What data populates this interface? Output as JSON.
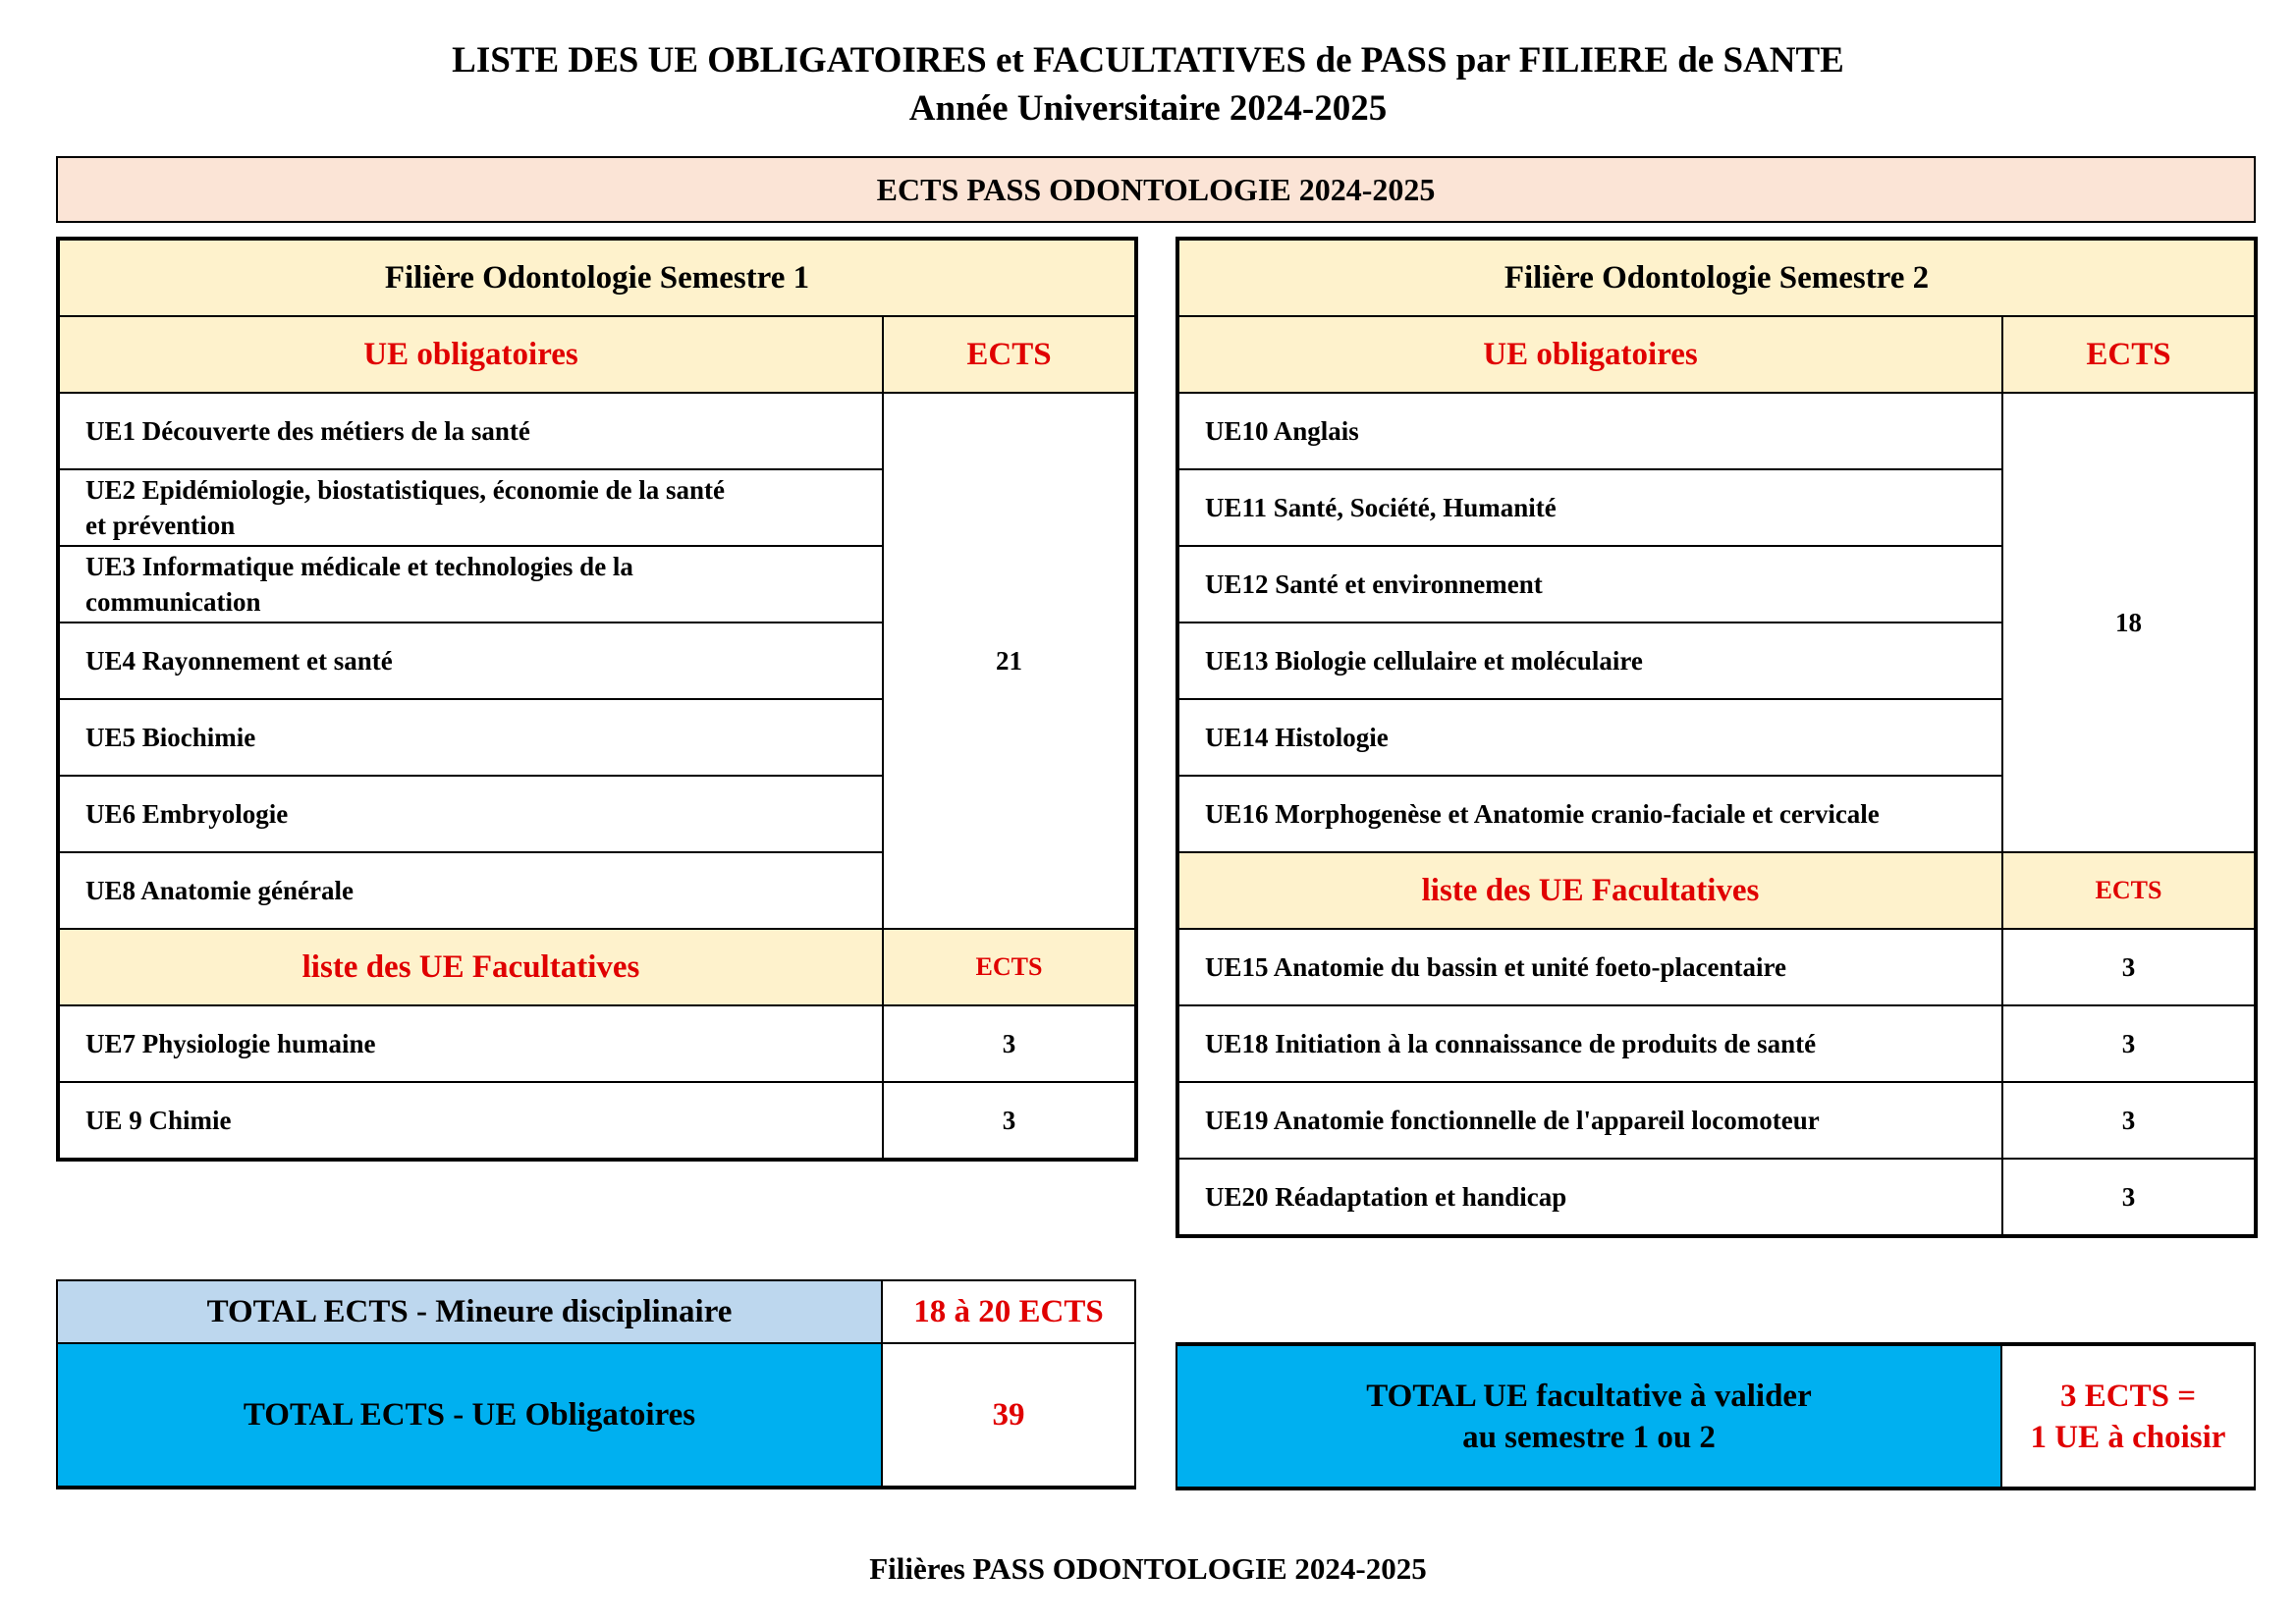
{
  "header": {
    "title_line1": "LISTE DES UE OBLIGATOIRES et FACULTATIVES de PASS par FILIERE de SANTE",
    "title_line2": "Année Universitaire 2024-2025",
    "banner": "ECTS PASS ODONTOLOGIE 2024-2025"
  },
  "semester1": {
    "title": "Filière Odontologie Semestre 1",
    "mandatory_header": "UE obligatoires",
    "ects_header": "ECTS",
    "mandatory": [
      "UE1 Découverte des métiers de la santé",
      "UE2 Epidémiologie, biostatistiques, économie de la santé et prévention",
      "UE3 Informatique médicale et technologies de la communication",
      "UE4 Rayonnement et santé",
      "UE5 Biochimie",
      "UE6 Embryologie",
      "UE8 Anatomie générale"
    ],
    "mandatory_ects": "21",
    "optional_header": "liste des UE  Facultatives",
    "optional_ects_header": "ECTS",
    "optional": [
      {
        "name": "UE7 Physiologie humaine",
        "ects": "3"
      },
      {
        "name": "UE 9 Chimie",
        "ects": "3"
      }
    ]
  },
  "semester2": {
    "title": "Filière Odontologie Semestre 2",
    "mandatory_header": "UE obligatoires",
    "ects_header": "ECTS",
    "mandatory": [
      "UE10 Anglais",
      "UE11 Santé, Société, Humanité",
      "UE12 Santé et environnement",
      "UE13 Biologie cellulaire et moléculaire",
      "UE14 Histologie",
      "UE16 Morphogenèse et Anatomie cranio-faciale et cervicale"
    ],
    "mandatory_ects": "18",
    "optional_header": "liste des UE  Facultatives",
    "optional_ects_header": "ECTS",
    "optional": [
      {
        "name": "UE15 Anatomie du bassin et unité foeto-placentaire",
        "ects": "3"
      },
      {
        "name": "UE18 Initiation à la connaissance de produits de santé",
        "ects": "3"
      },
      {
        "name": "UE19 Anatomie fonctionnelle de l'appareil locomoteur",
        "ects": "3"
      },
      {
        "name": "UE20 Réadaptation et handicap",
        "ects": "3"
      }
    ]
  },
  "totals": {
    "minor_label": "TOTAL ECTS - Mineure disciplinaire",
    "minor_value": "18 à 20 ECTS",
    "mandatory_label": "TOTAL ECTS - UE Obligatoires",
    "mandatory_value": "39",
    "optional_label_line1": "TOTAL UE facultative à valider",
    "optional_label_line2": "au semestre 1 ou 2",
    "optional_value_line1": "3 ECTS =",
    "optional_value_line2": "1 UE à choisir"
  },
  "footer": "Filières PASS ODONTOLOGIE 2024-2025",
  "colors": {
    "red": "#E00000",
    "header_yellow": "#FEF2CC",
    "banner_pink": "#FBE4D6",
    "light_blue": "#BDD7EE",
    "cyan": "#00B0F0"
  }
}
